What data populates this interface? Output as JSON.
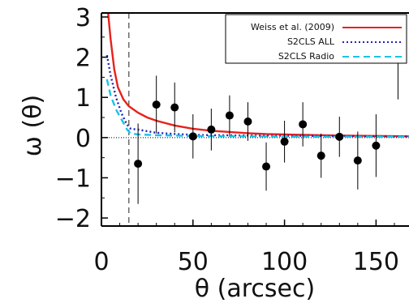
{
  "chart_data": {
    "type": "scatter",
    "xlabel": "θ (arcsec)",
    "ylabel": "ω (θ)",
    "xlim": [
      0,
      168
    ],
    "ylim": [
      -2.2,
      3.1
    ],
    "x_ticks": [
      0,
      50,
      100,
      150
    ],
    "x_tick_labels": [
      "0",
      "50",
      "100",
      "150"
    ],
    "y_ticks": [
      -2,
      -1,
      0,
      1,
      2,
      3
    ],
    "y_tick_labels": [
      "−2",
      "−1",
      "0",
      "1",
      "2",
      "3"
    ],
    "vline_x": 15,
    "hline_y": 0,
    "legend_position": "top-right",
    "legend": [
      {
        "label": "Weiss et al. (2009)",
        "color": "#e8211b",
        "style": "solid"
      },
      {
        "label": "S2CLS ALL",
        "color": "#2020c0",
        "style": "dotted"
      },
      {
        "label": "S2CLS Radio",
        "color": "#19c3e6",
        "style": "dashed"
      }
    ],
    "points": [
      {
        "x": 20,
        "y": -0.65,
        "err": 1.0
      },
      {
        "x": 30,
        "y": 0.82,
        "err": 0.72
      },
      {
        "x": 40,
        "y": 0.75,
        "err": 0.62
      },
      {
        "x": 50,
        "y": 0.03,
        "err": 0.55
      },
      {
        "x": 60,
        "y": 0.2,
        "err": 0.52
      },
      {
        "x": 70,
        "y": 0.55,
        "err": 0.5
      },
      {
        "x": 80,
        "y": 0.4,
        "err": 0.48
      },
      {
        "x": 90,
        "y": -0.72,
        "err": 0.6
      },
      {
        "x": 100,
        "y": -0.1,
        "err": 0.52
      },
      {
        "x": 110,
        "y": 0.33,
        "err": 0.55
      },
      {
        "x": 120,
        "y": -0.45,
        "err": 0.55
      },
      {
        "x": 130,
        "y": 0.02,
        "err": 0.5
      },
      {
        "x": 140,
        "y": -0.57,
        "err": 0.72
      },
      {
        "x": 150,
        "y": -0.2,
        "err": 0.78
      },
      {
        "x": 162,
        "y": 2.0,
        "err": 1.05
      }
    ],
    "series": [
      {
        "name": "Weiss et al. (2009)",
        "color": "#e8211b",
        "style": "solid",
        "x": [
          3,
          5,
          7,
          9,
          12,
          15,
          20,
          25,
          30,
          40,
          50,
          60,
          70,
          80,
          90,
          100,
          110,
          120,
          130,
          140,
          150,
          160,
          168
        ],
        "y": [
          3.4,
          2.45,
          1.7,
          1.25,
          0.95,
          0.78,
          0.62,
          0.5,
          0.42,
          0.3,
          0.22,
          0.17,
          0.14,
          0.11,
          0.09,
          0.08,
          0.07,
          0.06,
          0.05,
          0.045,
          0.04,
          0.035,
          0.03
        ]
      },
      {
        "name": "S2CLS ALL",
        "color": "#2020c0",
        "style": "dotted",
        "x": [
          3,
          5,
          8,
          11,
          14,
          16,
          20,
          30,
          40,
          50,
          60,
          80,
          100,
          120,
          140,
          160,
          168
        ],
        "y": [
          2.05,
          1.55,
          1.0,
          0.6,
          0.32,
          0.22,
          0.2,
          0.12,
          0.09,
          0.07,
          0.06,
          0.05,
          0.045,
          0.04,
          0.035,
          0.03,
          0.03
        ]
      },
      {
        "name": "S2CLS Radio",
        "color": "#19c3e6",
        "style": "dashed",
        "x": [
          3,
          5,
          8,
          11,
          14,
          16,
          20,
          30,
          40,
          50,
          60,
          80,
          100,
          120,
          140,
          160,
          168
        ],
        "y": [
          1.45,
          1.05,
          0.7,
          0.45,
          0.2,
          0.1,
          0.08,
          0.06,
          0.05,
          0.04,
          0.035,
          0.03,
          0.025,
          0.02,
          0.02,
          0.02,
          0.02
        ]
      }
    ]
  }
}
